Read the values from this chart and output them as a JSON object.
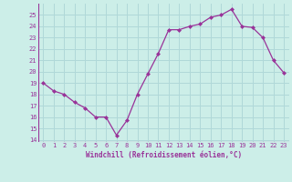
{
  "x": [
    0,
    1,
    2,
    3,
    4,
    5,
    6,
    7,
    8,
    9,
    10,
    11,
    12,
    13,
    14,
    15,
    16,
    17,
    18,
    19,
    20,
    21,
    22,
    23
  ],
  "y": [
    19,
    18.3,
    18,
    17.3,
    16.8,
    16,
    16,
    14.4,
    15.7,
    18,
    19.8,
    21.6,
    23.7,
    23.7,
    24.0,
    24.2,
    24.8,
    25.0,
    25.5,
    24.0,
    23.9,
    23.0,
    21.0,
    19.9
  ],
  "line_color": "#993399",
  "marker": "D",
  "marker_size": 2,
  "bg_color": "#cceee8",
  "grid_color": "#b0d8d8",
  "xlabel": "Windchill (Refroidissement éolien,°C)",
  "xlabel_color": "#993399",
  "tick_color": "#993399",
  "ylim": [
    13.8,
    26.0
  ],
  "yticks": [
    14,
    15,
    16,
    17,
    18,
    19,
    20,
    21,
    22,
    23,
    24,
    25
  ],
  "xticks": [
    0,
    1,
    2,
    3,
    4,
    5,
    6,
    7,
    8,
    9,
    10,
    11,
    12,
    13,
    14,
    15,
    16,
    17,
    18,
    19,
    20,
    21,
    22,
    23
  ],
  "xlim": [
    -0.5,
    23.5
  ]
}
